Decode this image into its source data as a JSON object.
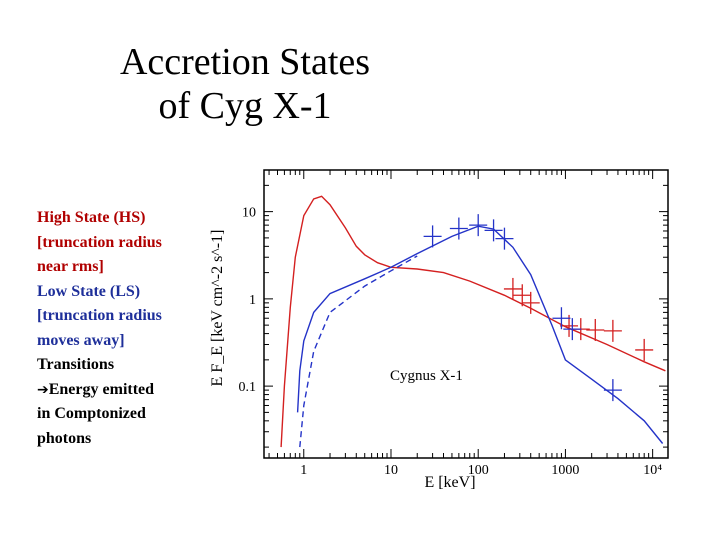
{
  "slide": {
    "title_line1": "Accretion States",
    "title_line2": "of Cyg X-1",
    "notes": {
      "hs": "High State (HS)",
      "hs_detail1": "[truncation radius",
      "hs_detail2": "near rms]",
      "ls": "Low State (LS)",
      "ls_detail1": "[truncation radius",
      "ls_detail2": "moves away]",
      "transitions": "Transitions",
      "arrow": "➔",
      "energy1": "Energy emitted",
      "energy2": "in Comptonized",
      "energy3": "photons"
    }
  },
  "chart_data": {
    "type": "line",
    "title": "",
    "annotation": "Cygnus X-1",
    "xlabel": "E  [keV]",
    "ylabel": "E  F_E  [keV cm^-2 s^-1]",
    "xscale": "log",
    "yscale": "log",
    "xlim": [
      0.35,
      15000
    ],
    "ylim": [
      0.015,
      30
    ],
    "x_ticks": [
      {
        "value": 1,
        "label": "1"
      },
      {
        "value": 10,
        "label": "10"
      },
      {
        "value": 100,
        "label": "100"
      },
      {
        "value": 1000,
        "label": "1000"
      },
      {
        "value": 10000,
        "label": "10⁴"
      }
    ],
    "y_ticks": [
      {
        "value": 0.1,
        "label": "0.1"
      },
      {
        "value": 1,
        "label": "1"
      },
      {
        "value": 10,
        "label": "10"
      }
    ],
    "series": [
      {
        "name": "High State model",
        "color": "#d42020",
        "style": "solid",
        "points": [
          [
            0.55,
            0.02
          ],
          [
            0.6,
            0.1
          ],
          [
            0.7,
            0.8
          ],
          [
            0.8,
            3.0
          ],
          [
            1.0,
            9.0
          ],
          [
            1.3,
            14.0
          ],
          [
            1.6,
            15.0
          ],
          [
            2.0,
            12.0
          ],
          [
            3.0,
            6.5
          ],
          [
            4.0,
            4.0
          ],
          [
            5.0,
            3.2
          ],
          [
            7.0,
            2.6
          ],
          [
            10.0,
            2.3
          ],
          [
            20.0,
            2.2
          ],
          [
            40.0,
            2.0
          ],
          [
            80.0,
            1.6
          ],
          [
            200.0,
            1.1
          ],
          [
            400.0,
            0.78
          ],
          [
            1000.0,
            0.48
          ],
          [
            3000.0,
            0.3
          ],
          [
            8000.0,
            0.19
          ],
          [
            14000.0,
            0.15
          ]
        ]
      },
      {
        "name": "Low State model (solid)",
        "color": "#2433c8",
        "style": "solid",
        "points": [
          [
            0.85,
            0.05
          ],
          [
            0.9,
            0.15
          ],
          [
            1.0,
            0.33
          ],
          [
            1.3,
            0.7
          ],
          [
            2.0,
            1.15
          ],
          [
            5.0,
            1.7
          ],
          [
            10.0,
            2.3
          ],
          [
            20.0,
            3.3
          ],
          [
            50.0,
            5.2
          ],
          [
            100.0,
            6.8
          ],
          [
            150.0,
            6.3
          ],
          [
            250.0,
            3.9
          ],
          [
            400.0,
            1.9
          ],
          [
            700.0,
            0.5
          ],
          [
            1000.0,
            0.2
          ],
          [
            2000.0,
            0.12
          ],
          [
            4000.0,
            0.072
          ],
          [
            8000.0,
            0.04
          ],
          [
            13000.0,
            0.022
          ]
        ]
      },
      {
        "name": "Low State model (dashed)",
        "color": "#2433c8",
        "style": "dashed",
        "points": [
          [
            0.9,
            0.02
          ],
          [
            1.0,
            0.06
          ],
          [
            1.3,
            0.25
          ],
          [
            2.0,
            0.7
          ],
          [
            5.0,
            1.4
          ],
          [
            10.0,
            2.1
          ],
          [
            20.0,
            3.1
          ]
        ]
      }
    ],
    "error_bars": [
      {
        "color": "#d42020",
        "points": [
          [
            250,
            1.3
          ],
          [
            320,
            1.1
          ],
          [
            400,
            0.9
          ],
          [
            1100,
            0.49
          ],
          [
            1500,
            0.45
          ],
          [
            2200,
            0.44
          ],
          [
            3500,
            0.43
          ],
          [
            8000,
            0.26
          ]
        ]
      },
      {
        "color": "#2433c8",
        "points": [
          [
            30,
            5.2
          ],
          [
            60,
            6.4
          ],
          [
            100,
            7.0
          ],
          [
            150,
            6.1
          ],
          [
            200,
            4.9
          ],
          [
            900,
            0.6
          ],
          [
            1200,
            0.45
          ],
          [
            3500,
            0.09
          ]
        ]
      }
    ]
  }
}
